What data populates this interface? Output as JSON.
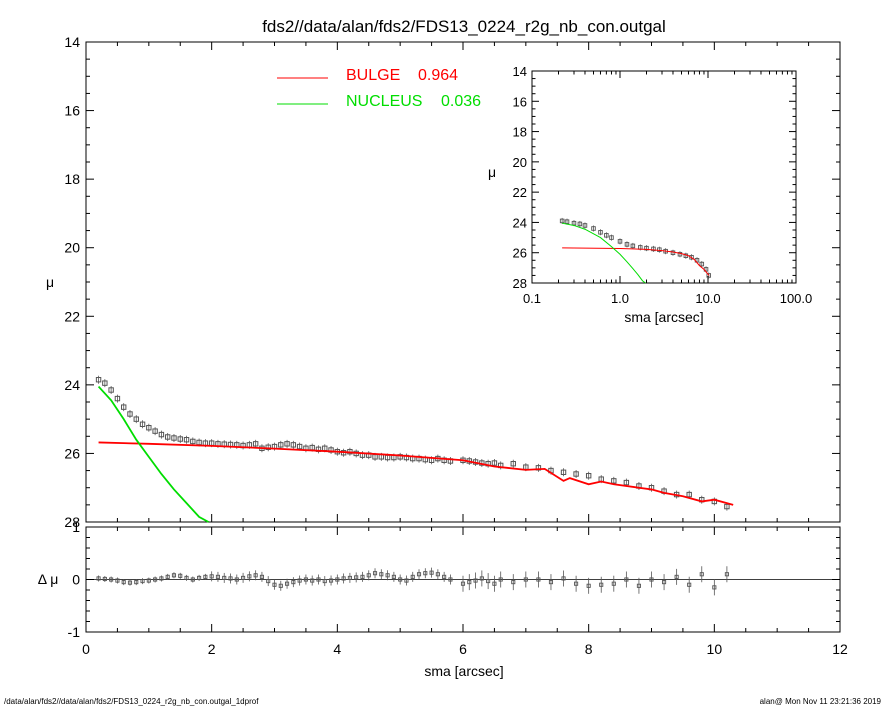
{
  "title": "fds2//data/alan/fds2/FDS13_0224_r2g_nb_con.outgal",
  "footer_left": "/data/alan/fds2//data/alan/fds2/FDS13_0224_r2g_nb_con.outgal_1dprof",
  "footer_right": "alan@  Mon Nov 11 23:21:36 2019",
  "colors": {
    "bulge": "#ff0000",
    "nucleus": "#00dd00",
    "data": "#555555",
    "axis": "#000000"
  },
  "chart_data": [
    {
      "type": "scatter",
      "panel": "main",
      "title": "fds2//data/alan/fds2/FDS13_0224_r2g_nb_con.outgal",
      "ylabel": "μ",
      "xlim": [
        0,
        12
      ],
      "ylim": [
        28,
        14
      ],
      "x_ticks": [
        "0",
        "2",
        "4",
        "6",
        "8",
        "10",
        "12"
      ],
      "y_ticks": [
        "14",
        "16",
        "18",
        "20",
        "22",
        "24",
        "26",
        "28"
      ],
      "legend": [
        {
          "name": "BULGE",
          "value": "0.964",
          "color": "#ff0000"
        },
        {
          "name": "NUCLEUS",
          "value": "0.036",
          "color": "#00dd00"
        }
      ],
      "observed": {
        "x": [
          0.2,
          0.3,
          0.4,
          0.5,
          0.6,
          0.7,
          0.8,
          0.9,
          1.0,
          1.1,
          1.2,
          1.3,
          1.4,
          1.5,
          1.6,
          1.7,
          1.8,
          1.9,
          2.0,
          2.1,
          2.2,
          2.3,
          2.4,
          2.5,
          2.6,
          2.7,
          2.8,
          2.9,
          3.0,
          3.1,
          3.2,
          3.3,
          3.4,
          3.5,
          3.6,
          3.7,
          3.8,
          3.9,
          4.0,
          4.1,
          4.2,
          4.3,
          4.4,
          4.5,
          4.6,
          4.7,
          4.8,
          4.9,
          5.0,
          5.1,
          5.2,
          5.3,
          5.4,
          5.5,
          5.6,
          5.7,
          5.8,
          6.0,
          6.1,
          6.2,
          6.3,
          6.4,
          6.5,
          6.6,
          6.8,
          7.0,
          7.2,
          7.4,
          7.6,
          7.8,
          8.0,
          8.2,
          8.4,
          8.6,
          8.8,
          9.0,
          9.2,
          9.4,
          9.6,
          9.8,
          10.0,
          10.2
        ],
        "y": [
          23.85,
          23.95,
          24.15,
          24.4,
          24.65,
          24.85,
          25.0,
          25.15,
          25.25,
          25.35,
          25.45,
          25.52,
          25.55,
          25.58,
          25.6,
          25.65,
          25.68,
          25.7,
          25.7,
          25.72,
          25.73,
          25.74,
          25.75,
          25.77,
          25.75,
          25.72,
          25.85,
          25.82,
          25.8,
          25.75,
          25.72,
          25.75,
          25.8,
          25.85,
          25.83,
          25.88,
          25.85,
          25.9,
          25.95,
          25.98,
          25.95,
          26.0,
          26.05,
          26.05,
          26.1,
          26.1,
          26.12,
          26.12,
          26.1,
          26.12,
          26.15,
          26.15,
          26.18,
          26.2,
          26.15,
          26.2,
          26.22,
          26.2,
          26.22,
          26.25,
          26.28,
          26.3,
          26.28,
          26.35,
          26.3,
          26.4,
          26.42,
          26.5,
          26.55,
          26.6,
          26.65,
          26.75,
          26.8,
          26.85,
          26.95,
          27.0,
          27.1,
          27.2,
          27.2,
          27.35,
          27.4,
          27.55
        ]
      },
      "bulge_model": {
        "x": [
          0.2,
          1,
          2,
          3,
          4,
          5,
          6,
          6.5,
          6.7,
          7,
          7.3,
          7.6,
          7.7,
          8,
          8.2,
          8.4,
          8.8,
          9,
          9.2,
          9.5,
          9.8,
          10,
          10.3
        ],
        "y": [
          25.68,
          25.72,
          25.78,
          25.86,
          25.95,
          26.06,
          26.2,
          26.38,
          26.42,
          26.48,
          26.45,
          26.8,
          26.72,
          26.9,
          26.82,
          26.9,
          27.0,
          27.05,
          27.15,
          27.25,
          27.4,
          27.35,
          27.5
        ]
      },
      "nucleus_model": {
        "x": [
          0.2,
          0.4,
          0.6,
          0.8,
          1.0,
          1.2,
          1.4,
          1.6,
          1.8,
          1.95
        ],
        "y": [
          24.05,
          24.45,
          25.0,
          25.6,
          26.1,
          26.6,
          27.05,
          27.45,
          27.85,
          28.0
        ]
      }
    },
    {
      "type": "scatter",
      "panel": "inset",
      "xlabel": "sma [arcsec]",
      "ylabel": "μ",
      "xscale": "log",
      "xlim": [
        0.1,
        100
      ],
      "ylim": [
        28,
        14
      ],
      "x_ticks": [
        "0.1",
        "1.0",
        "10.0",
        "100.0"
      ],
      "y_ticks": [
        "14",
        "16",
        "18",
        "20",
        "22",
        "24",
        "26",
        "28"
      ],
      "observed": {
        "x": [
          0.22,
          0.25,
          0.3,
          0.35,
          0.4,
          0.5,
          0.6,
          0.7,
          0.8,
          1.0,
          1.2,
          1.4,
          1.7,
          2.0,
          2.4,
          2.8,
          3.3,
          4.0,
          4.8,
          5.6,
          6.5,
          7.5,
          8.5,
          9.5,
          10.2
        ],
        "y": [
          23.9,
          23.95,
          24.05,
          24.1,
          24.2,
          24.4,
          24.65,
          24.85,
          25.0,
          25.25,
          25.45,
          25.55,
          25.65,
          25.7,
          25.75,
          25.8,
          25.9,
          26.0,
          26.1,
          26.2,
          26.3,
          26.5,
          26.75,
          27.1,
          27.5
        ]
      },
      "bulge_model": {
        "x": [
          0.22,
          1.0,
          2.0,
          3.0,
          4.0,
          5.0,
          6.0,
          7.0,
          8.0,
          9.0,
          10.3
        ],
        "y": [
          25.68,
          25.72,
          25.78,
          25.86,
          25.95,
          26.06,
          26.2,
          26.45,
          26.85,
          27.1,
          27.5
        ]
      },
      "nucleus_model": {
        "x": [
          0.22,
          0.3,
          0.4,
          0.6,
          0.8,
          1.0,
          1.2,
          1.4,
          1.6,
          1.8,
          1.95
        ],
        "y": [
          24.05,
          24.2,
          24.45,
          25.0,
          25.6,
          26.1,
          26.6,
          27.05,
          27.45,
          27.85,
          28.0
        ]
      }
    },
    {
      "type": "scatter",
      "panel": "residual",
      "xlabel": "sma [arcsec]",
      "ylabel": "Δ μ",
      "xlim": [
        0,
        12
      ],
      "ylim": [
        -1,
        1
      ],
      "x_ticks": [
        "0",
        "2",
        "4",
        "6",
        "8",
        "10",
        "12"
      ],
      "y_ticks": [
        "-1",
        "0",
        "1"
      ],
      "residuals": {
        "x": [
          0.2,
          0.3,
          0.4,
          0.5,
          0.6,
          0.7,
          0.8,
          0.9,
          1.0,
          1.1,
          1.2,
          1.3,
          1.4,
          1.5,
          1.6,
          1.7,
          1.8,
          1.9,
          2.0,
          2.1,
          2.2,
          2.3,
          2.4,
          2.5,
          2.6,
          2.7,
          2.8,
          2.9,
          3.0,
          3.1,
          3.2,
          3.3,
          3.4,
          3.5,
          3.6,
          3.7,
          3.8,
          3.9,
          4.0,
          4.1,
          4.2,
          4.3,
          4.4,
          4.5,
          4.6,
          4.7,
          4.8,
          4.9,
          5.0,
          5.1,
          5.2,
          5.3,
          5.4,
          5.5,
          5.6,
          5.7,
          5.8,
          6.0,
          6.1,
          6.2,
          6.3,
          6.4,
          6.5,
          6.6,
          6.8,
          7.0,
          7.2,
          7.4,
          7.6,
          7.8,
          8.0,
          8.2,
          8.4,
          8.6,
          8.8,
          9.0,
          9.2,
          9.4,
          9.6,
          9.8,
          10.0,
          10.2
        ],
        "y": [
          0.02,
          0.01,
          0.0,
          -0.02,
          -0.05,
          -0.06,
          -0.05,
          -0.03,
          -0.02,
          0.0,
          0.02,
          0.05,
          0.08,
          0.07,
          0.03,
          0.0,
          0.03,
          0.05,
          0.06,
          0.05,
          0.03,
          0.02,
          0.0,
          0.03,
          0.06,
          0.08,
          0.05,
          -0.03,
          -0.1,
          -0.12,
          -0.08,
          -0.05,
          -0.02,
          0.0,
          -0.02,
          0.0,
          -0.03,
          -0.02,
          0.0,
          0.02,
          0.03,
          0.04,
          0.05,
          0.08,
          0.12,
          0.1,
          0.08,
          0.05,
          0.0,
          -0.02,
          0.05,
          0.1,
          0.12,
          0.13,
          0.1,
          0.05,
          0.0,
          -0.08,
          -0.05,
          -0.02,
          0.02,
          -0.03,
          -0.08,
          0.0,
          -0.05,
          0.0,
          0.0,
          -0.05,
          0.02,
          -0.08,
          -0.12,
          -0.1,
          -0.08,
          0.0,
          -0.12,
          0.0,
          -0.05,
          0.05,
          -0.1,
          0.1,
          -0.15,
          0.1
        ]
      }
    }
  ]
}
